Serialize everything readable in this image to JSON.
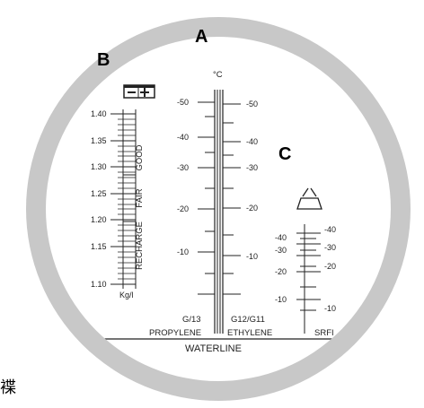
{
  "labels": {
    "a": "A",
    "b": "B",
    "c": "C"
  },
  "unit_celsius": "°C",
  "specific_gravity": {
    "ticks": [
      "1.40",
      "1.35",
      "1.30",
      "1.25",
      "1.20",
      "1.15",
      "1.10"
    ],
    "unit": "Kg/l",
    "zones": [
      "GOOD",
      "FAIR",
      "RECHARGE"
    ]
  },
  "left_celsius_ticks": [
    "-50",
    "-40",
    "-30",
    "-20",
    "-10"
  ],
  "right_celsius_ticks": [
    "-50",
    "-40",
    "-30",
    "-20",
    "-10"
  ],
  "srfi_left_ticks": [
    "-40",
    "-30",
    "-20",
    "-10"
  ],
  "srfi_right_ticks": [
    "-40",
    "-30",
    "-20",
    "-10"
  ],
  "scale_names": {
    "propylene_code": "G/13",
    "propylene": "PROPYLENE",
    "ethylene_code": "G12/G11",
    "ethylene": "ETHYLENE",
    "srfi": "SRFI"
  },
  "waterline": "WATERLINE",
  "edge_text": "褋",
  "colors": {
    "ring": "#c8c8c8",
    "ink": "#222222",
    "background": "#ffffff"
  },
  "icons": [
    "battery-icon",
    "windshield-icon"
  ]
}
